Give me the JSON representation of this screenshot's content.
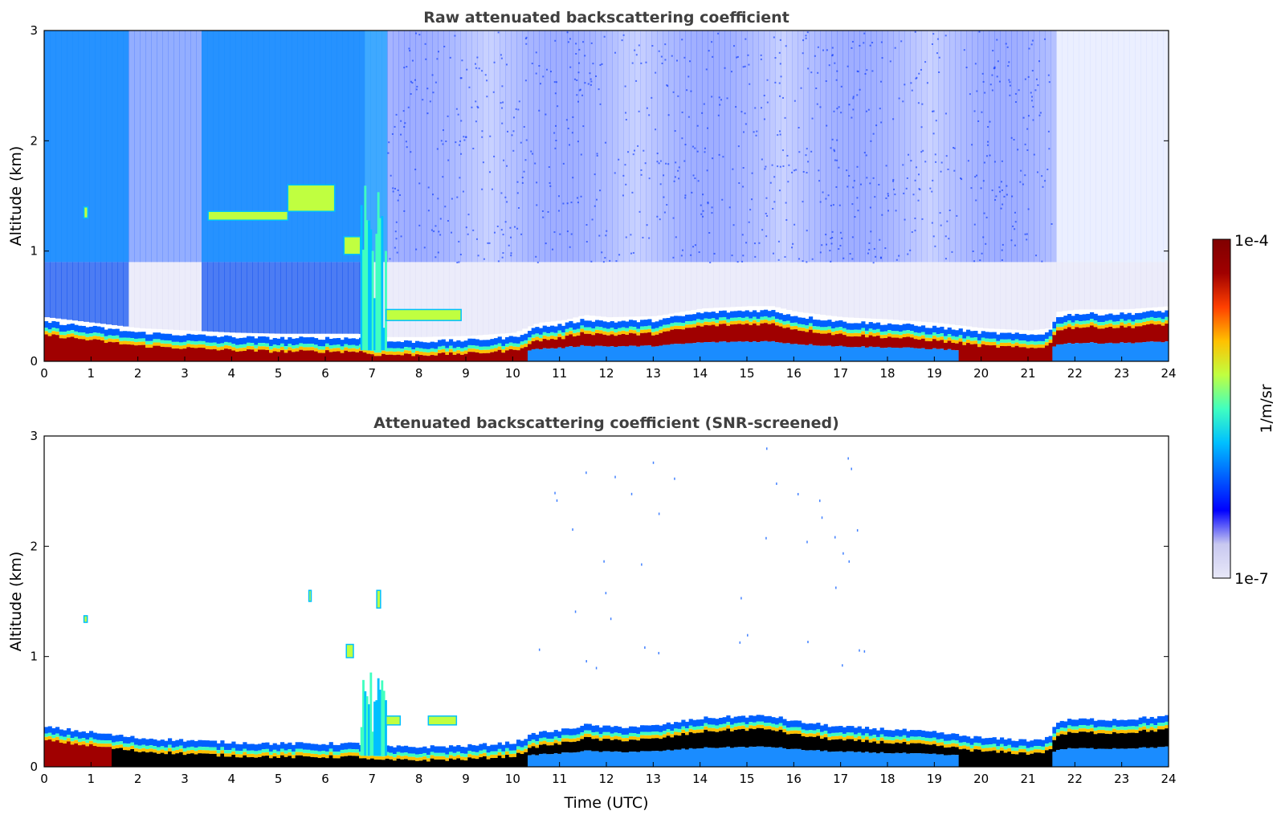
{
  "chart_data": [
    {
      "type": "heatmap",
      "title": "Raw attenuated backscattering coefficient",
      "xlabel": "",
      "ylabel": "Altitude (km)",
      "xlim": [
        0,
        24
      ],
      "ylim": [
        0,
        3
      ],
      "xticks": [
        "0",
        "1",
        "2",
        "3",
        "4",
        "5",
        "6",
        "7",
        "8",
        "9",
        "10",
        "11",
        "12",
        "13",
        "14",
        "15",
        "16",
        "17",
        "18",
        "19",
        "20",
        "21",
        "22",
        "23",
        "24"
      ],
      "yticks": [
        "0",
        "1",
        "2",
        "3"
      ],
      "screened": false,
      "boundary_layer_top_km": [
        [
          0,
          0.3
        ],
        [
          1,
          0.25
        ],
        [
          2,
          0.2
        ],
        [
          3,
          0.18
        ],
        [
          4,
          0.16
        ],
        [
          5,
          0.15
        ],
        [
          6,
          0.15
        ],
        [
          6.7,
          0.15
        ],
        [
          7,
          0.12
        ],
        [
          8,
          0.12
        ],
        [
          9,
          0.13
        ],
        [
          10,
          0.16
        ],
        [
          10.5,
          0.25
        ],
        [
          11,
          0.27
        ],
        [
          11.5,
          0.32
        ],
        [
          12,
          0.3
        ],
        [
          13,
          0.31
        ],
        [
          14,
          0.38
        ],
        [
          15,
          0.4
        ],
        [
          15.5,
          0.4
        ],
        [
          16,
          0.35
        ],
        [
          17,
          0.3
        ],
        [
          18,
          0.28
        ],
        [
          19,
          0.25
        ],
        [
          20,
          0.2
        ],
        [
          21,
          0.18
        ],
        [
          21.4,
          0.2
        ],
        [
          21.6,
          0.35
        ],
        [
          22,
          0.37
        ],
        [
          23,
          0.37
        ],
        [
          24,
          0.4
        ]
      ],
      "cloud_features": [
        {
          "x": [
            0.8,
            0.95
          ],
          "y": 1.35
        },
        {
          "x": [
            3.5,
            5.2
          ],
          "y": 1.32
        },
        {
          "x": [
            5.2,
            6.2
          ],
          "y": 1.5
        },
        {
          "x": [
            6.4,
            6.8
          ],
          "y": 1.05
        },
        {
          "x": [
            6.8,
            7.3
          ],
          "y": [
            0.1,
            1.6
          ]
        },
        {
          "x": [
            7.3,
            9
          ],
          "y": 0.4
        }
      ]
    },
    {
      "type": "heatmap",
      "title": "Attenuated backscattering coefficient (SNR-screened)",
      "xlabel": "Time (UTC)",
      "ylabel": "Altitude (km)",
      "xlim": [
        0,
        24
      ],
      "ylim": [
        0,
        3
      ],
      "xticks": [
        "0",
        "1",
        "2",
        "3",
        "4",
        "5",
        "6",
        "7",
        "8",
        "9",
        "10",
        "11",
        "12",
        "13",
        "14",
        "15",
        "16",
        "17",
        "18",
        "19",
        "20",
        "21",
        "22",
        "23",
        "24"
      ],
      "yticks": [
        "0",
        "1",
        "2",
        "3"
      ],
      "screened": true,
      "boundary_layer_top_km": [
        [
          0,
          0.3
        ],
        [
          1,
          0.25
        ],
        [
          2,
          0.2
        ],
        [
          3,
          0.18
        ],
        [
          4,
          0.16
        ],
        [
          5,
          0.15
        ],
        [
          6,
          0.15
        ],
        [
          6.7,
          0.15
        ],
        [
          7,
          0.12
        ],
        [
          8,
          0.12
        ],
        [
          9,
          0.13
        ],
        [
          10,
          0.16
        ],
        [
          10.5,
          0.25
        ],
        [
          11,
          0.27
        ],
        [
          11.5,
          0.32
        ],
        [
          12,
          0.3
        ],
        [
          13,
          0.31
        ],
        [
          14,
          0.38
        ],
        [
          15,
          0.4
        ],
        [
          15.5,
          0.4
        ],
        [
          16,
          0.35
        ],
        [
          17,
          0.3
        ],
        [
          18,
          0.28
        ],
        [
          19,
          0.25
        ],
        [
          20,
          0.2
        ],
        [
          21,
          0.18
        ],
        [
          21.4,
          0.2
        ],
        [
          21.6,
          0.35
        ],
        [
          22,
          0.37
        ],
        [
          23,
          0.37
        ],
        [
          24,
          0.4
        ]
      ]
    }
  ],
  "colorbar": {
    "label": "1/m/sr",
    "max_label": "1e-4",
    "min_label": "1e-7",
    "scale": "log",
    "colormap": "jet",
    "colors": [
      "#e8e8f8",
      "#c8c8f0",
      "#0000ff",
      "#0060ff",
      "#00c0ff",
      "#40ffc0",
      "#c0ff40",
      "#ffc000",
      "#ff4000",
      "#a00000",
      "#800000"
    ]
  }
}
